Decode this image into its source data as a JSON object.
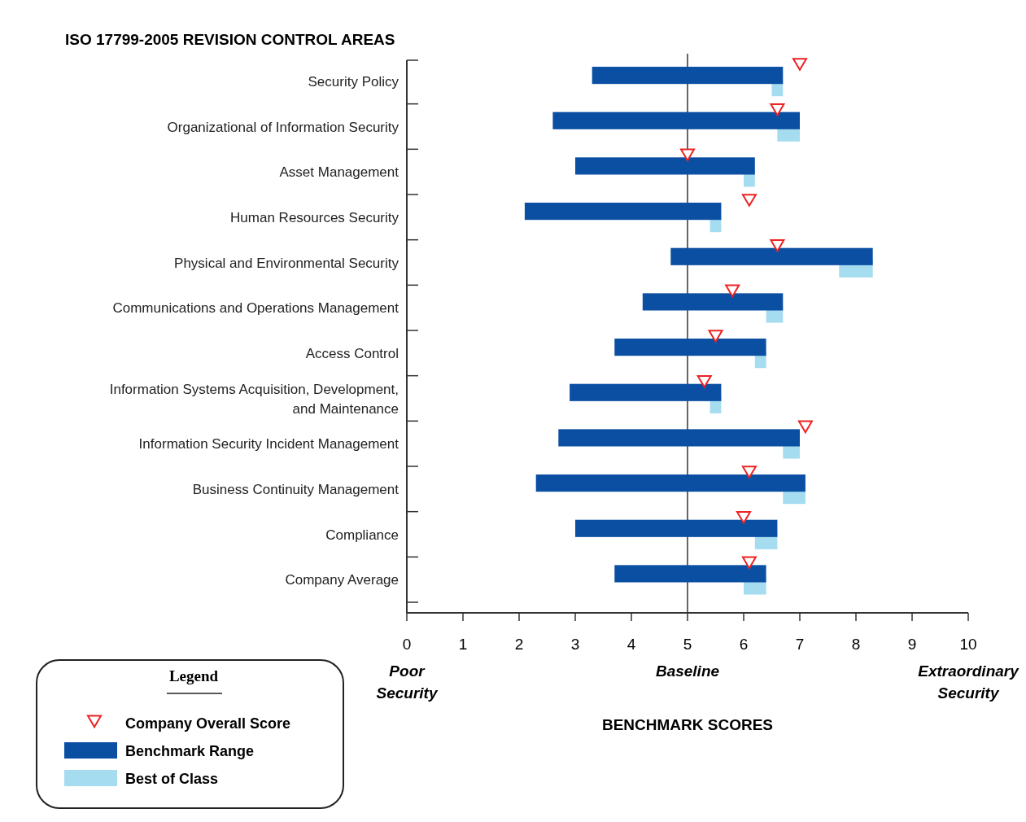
{
  "chart_data": {
    "type": "bar",
    "orientation": "horizontal",
    "title": "ISO 17799-2005 REVISION CONTROL AREAS",
    "xlabel": "BENCHMARK SCORES",
    "legend_title": "Legend",
    "legend": "bottom left",
    "grid": false,
    "categories": [
      "Security Policy",
      "Organizational of Information Security",
      "Asset Management",
      "Human Resources Security",
      "Physical and Environmental Security",
      "Communications and Operations Management",
      "Access Control",
      "Information Systems Acquisition, Development, and Maintenance",
      "Information Security Incident Management",
      "Business Continuity Management",
      "Compliance",
      "Company Average"
    ],
    "xlim": [
      0,
      10
    ],
    "xticks": [
      0,
      1,
      2,
      3,
      4,
      5,
      6,
      7,
      8,
      9,
      10
    ],
    "series": [
      {
        "type": "scatter",
        "name": "Company Overall Score",
        "color": "#ee2222",
        "marker": "triangle",
        "values": [
          7.0,
          6.6,
          5.0,
          6.1,
          6.6,
          5.8,
          5.5,
          5.3,
          7.1,
          6.1,
          6.0,
          6.1
        ]
      },
      {
        "name": "Benchmark Range",
        "color": "#0b4fa3",
        "base": [
          3.3,
          2.6,
          3.0,
          2.1,
          4.7,
          4.2,
          3.7,
          2.9,
          2.7,
          2.3,
          3.0,
          3.7
        ],
        "values": [
          3.4,
          4.4,
          3.2,
          3.5,
          3.6,
          2.5,
          2.7,
          2.7,
          4.3,
          4.8,
          3.6,
          2.7
        ]
      },
      {
        "name": "Best of Class",
        "color": "#a6dcef",
        "base": [
          6.5,
          6.6,
          6.0,
          5.4,
          7.7,
          6.4,
          6.2,
          5.4,
          6.7,
          6.7,
          6.2,
          6.0
        ],
        "values": [
          0.2,
          0.4,
          0.2,
          0.2,
          0.6,
          0.3,
          0.2,
          0.2,
          0.3,
          0.4,
          0.4,
          0.4
        ]
      }
    ],
    "ref_lines": [
      {
        "axis": "x",
        "value": 5,
        "color": "#333333"
      }
    ],
    "annotations": [
      "Poor Security",
      "Baseline",
      "Extraordinary Security"
    ]
  }
}
